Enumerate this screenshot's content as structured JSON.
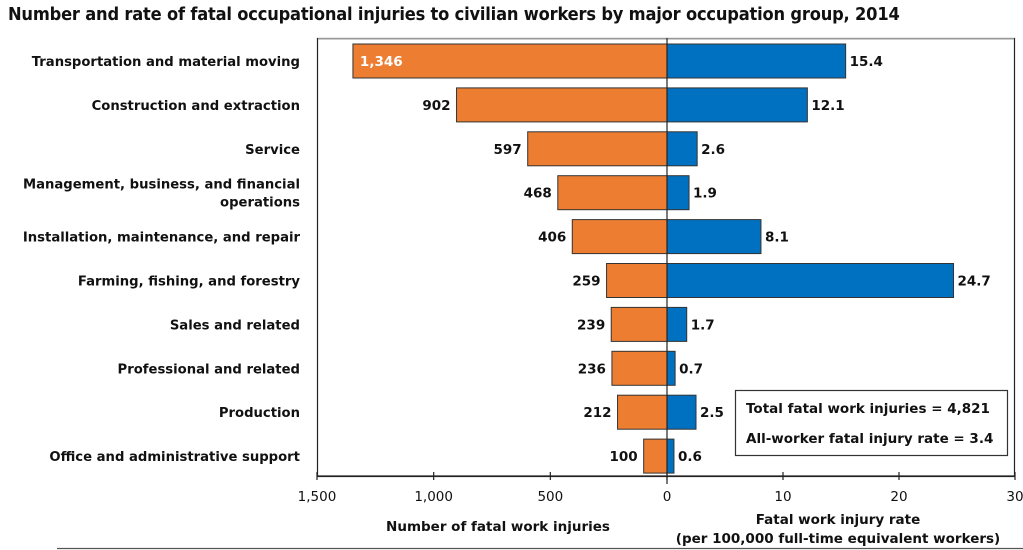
{
  "chart_data": {
    "type": "bar",
    "orientation": "horizontal-butterfly",
    "title": "Number and rate of fatal occupational injuries to civilian workers by major occupation group, 2014",
    "categories": [
      "Transportation and material moving",
      "Construction and extraction",
      "Service",
      "Management, business, and financial operations",
      "Installation, maintenance, and repair",
      "Farming, fishing, and forestry",
      "Sales and related",
      "Professional and related",
      "Production",
      "Office and administrative support"
    ],
    "category_lines": [
      [
        "Transportation and material moving"
      ],
      [
        "Construction and extraction"
      ],
      [
        "Service"
      ],
      [
        "Management, business, and financial",
        "operations"
      ],
      [
        "Installation, maintenance, and repair"
      ],
      [
        "Farming, fishing, and forestry"
      ],
      [
        "Sales and related"
      ],
      [
        "Professional and related"
      ],
      [
        "Production"
      ],
      [
        "Office and administrative support"
      ]
    ],
    "series": [
      {
        "name": "Number of fatal work injuries",
        "side": "left",
        "color": "#ED7D31",
        "values": [
          1346,
          902,
          597,
          468,
          406,
          259,
          239,
          236,
          212,
          100
        ],
        "labels": [
          "1,346",
          "902",
          "597",
          "468",
          "406",
          "259",
          "239",
          "236",
          "212",
          "100"
        ],
        "xlim": [
          0,
          1500
        ],
        "ticks": [
          1500,
          1000,
          500,
          0
        ],
        "tick_labels": [
          "1,500",
          "1,000",
          "500",
          "0"
        ],
        "xlabel": "Number of fatal work injuries"
      },
      {
        "name": "Fatal work injury rate",
        "side": "right",
        "color": "#0070C0",
        "values": [
          15.4,
          12.1,
          2.6,
          1.9,
          8.1,
          24.7,
          1.7,
          0.7,
          2.5,
          0.6
        ],
        "labels": [
          "15.4",
          "12.1",
          "2.6",
          "1.9",
          "8.1",
          "24.7",
          "1.7",
          "0.7",
          "2.5",
          "0.6"
        ],
        "xlim": [
          0,
          30
        ],
        "ticks": [
          10,
          20,
          30
        ],
        "tick_labels": [
          "10",
          "20",
          "30"
        ],
        "xlabel_lines": [
          "Fatal work injury rate",
          "(per 100,000 full-time equivalent workers)"
        ]
      }
    ],
    "annotations": [
      "Total fatal work injuries = 4,821",
      "All-worker fatal injury rate = 3.4"
    ],
    "grid": false,
    "legend": "none"
  }
}
